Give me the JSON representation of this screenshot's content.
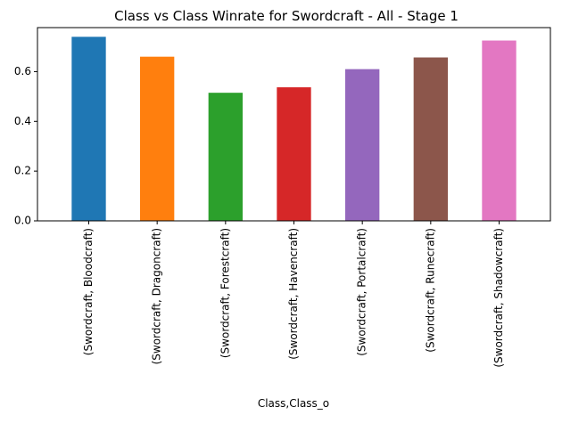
{
  "chart_data": {
    "type": "bar",
    "title": "Class vs Class Winrate for Swordcraft - All - Stage 1",
    "xlabel": "Class,Class_o",
    "ylabel": "",
    "categories": [
      "(Swordcraft, Bloodcraft)",
      "(Swordcraft, Dragoncraft)",
      "(Swordcraft, Forestcraft)",
      "(Swordcraft, Havencraft)",
      "(Swordcraft, Portalcraft)",
      "(Swordcraft, Runecraft)",
      "(Swordcraft, Shadowcraft)"
    ],
    "values": [
      0.74,
      0.66,
      0.515,
      0.537,
      0.61,
      0.657,
      0.725
    ],
    "colors": [
      "#1f77b4",
      "#ff7f0e",
      "#2ca02c",
      "#d62728",
      "#9467bd",
      "#8c564b",
      "#e377c2"
    ],
    "yticks": [
      "0.0",
      "0.2",
      "0.4",
      "0.6"
    ],
    "ylim": [
      0,
      0.777
    ],
    "grid": false,
    "legend": "none"
  }
}
